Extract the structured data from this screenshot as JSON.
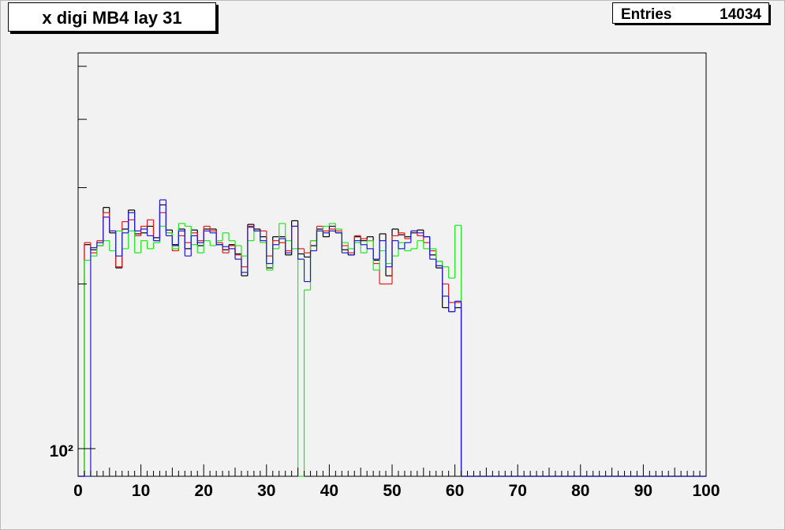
{
  "chart_data": {
    "type": "histogram",
    "title": "x digi MB4 lay 31",
    "stats": {
      "label": "Entries",
      "value": 14034
    },
    "log_y": true,
    "xlim": [
      0,
      100
    ],
    "ylim": [
      89,
      529
    ],
    "xticks": [
      0,
      10,
      20,
      30,
      40,
      50,
      60,
      70,
      80,
      90,
      100
    ],
    "yticks": [
      {
        "value": 100,
        "label": "10²"
      }
    ],
    "yminorticks": [
      200,
      300,
      400,
      500
    ],
    "bins": [
      0,
      1,
      2,
      3,
      4,
      5,
      6,
      7,
      8,
      9,
      10,
      11,
      12,
      13,
      14,
      15,
      16,
      17,
      18,
      19,
      20,
      21,
      22,
      23,
      24,
      25,
      26,
      27,
      28,
      29,
      30,
      31,
      32,
      33,
      34,
      35,
      36,
      37,
      38,
      39,
      40,
      41,
      42,
      43,
      44,
      45,
      46,
      47,
      48,
      49,
      50,
      51,
      52,
      53,
      54,
      55,
      56,
      57,
      58,
      59,
      60,
      61,
      62,
      63,
      64,
      65,
      66,
      67,
      68,
      69,
      70,
      71,
      72,
      73,
      74,
      75,
      76,
      77,
      78,
      79,
      80,
      81,
      82,
      83,
      84,
      85,
      86,
      87,
      88,
      89,
      90,
      91,
      92,
      93,
      94,
      95,
      96,
      97,
      98,
      99,
      100
    ],
    "series": [
      {
        "color": "#000000",
        "values": [
          0,
          236,
          231,
          235,
          276,
          248,
          214,
          252,
          273,
          247,
          248,
          255,
          243,
          279,
          251,
          236,
          252,
          232,
          251,
          235,
          252,
          252,
          236,
          231,
          236,
          227,
          207,
          257,
          252,
          244,
          214,
          244,
          244,
          226,
          261,
          227,
          224,
          235,
          252,
          244,
          255,
          248,
          231,
          226,
          244,
          240,
          244,
          221,
          247,
          207,
          252,
          246,
          244,
          248,
          251,
          244,
          226,
          214,
          181,
          178,
          181,
          0,
          0,
          0,
          0,
          0,
          0,
          0,
          0,
          0,
          0,
          0,
          0,
          0,
          0,
          0,
          0,
          0,
          0,
          0,
          0,
          0,
          0,
          0,
          0,
          0,
          0,
          0,
          0,
          0,
          0,
          0,
          0,
          0,
          0,
          0,
          0,
          0,
          0,
          0
        ]
      },
      {
        "color": "#e8191c",
        "values": [
          0,
          238,
          228,
          240,
          270,
          250,
          215,
          260,
          262,
          245,
          255,
          262,
          240,
          270,
          248,
          230,
          245,
          238,
          248,
          240,
          255,
          250,
          238,
          228,
          235,
          226,
          215,
          255,
          250,
          250,
          225,
          240,
          238,
          230,
          255,
          232,
          228,
          240,
          255,
          250,
          252,
          250,
          235,
          228,
          245,
          242,
          240,
          218,
          200,
          200,
          245,
          248,
          242,
          250,
          245,
          238,
          230,
          220,
          200,
          185,
          185,
          0,
          0,
          0,
          0,
          0,
          0,
          0,
          0,
          0,
          0,
          0,
          0,
          0,
          0,
          0,
          0,
          0,
          0,
          0,
          0,
          0,
          0,
          0,
          0,
          0,
          0,
          0,
          0,
          0,
          0,
          0,
          0,
          0,
          0,
          0,
          0,
          0,
          0,
          0
        ]
      },
      {
        "color": "#1ee81e",
        "values": [
          0,
          221,
          225,
          235,
          240,
          230,
          250,
          232,
          250,
          228,
          240,
          232,
          238,
          255,
          248,
          232,
          258,
          255,
          236,
          228,
          240,
          235,
          240,
          248,
          240,
          235,
          225,
          240,
          250,
          238,
          212,
          232,
          258,
          240,
          232,
          0,
          195,
          240,
          250,
          255,
          258,
          252,
          238,
          232,
          238,
          228,
          240,
          212,
          230,
          218,
          225,
          238,
          230,
          232,
          240,
          232,
          232,
          220,
          215,
          205,
          256,
          0,
          0,
          0,
          0,
          0,
          0,
          0,
          0,
          0,
          0,
          0,
          0,
          0,
          0,
          0,
          0,
          0,
          0,
          0,
          0,
          0,
          0,
          0,
          0,
          0,
          0,
          0,
          0,
          0,
          0,
          0,
          0,
          0,
          0,
          0,
          0,
          0,
          0,
          0
        ]
      },
      {
        "color": "#1c1cd6",
        "values": [
          0,
          0,
          233,
          238,
          265,
          250,
          225,
          248,
          270,
          250,
          252,
          245,
          240,
          285,
          245,
          235,
          250,
          225,
          245,
          238,
          250,
          248,
          236,
          234,
          232,
          222,
          210,
          254,
          250,
          240,
          218,
          236,
          242,
          228,
          255,
          222,
          202,
          230,
          250,
          248,
          250,
          248,
          228,
          226,
          240,
          236,
          232,
          222,
          240,
          215,
          240,
          232,
          238,
          250,
          248,
          244,
          222,
          216,
          190,
          178,
          186,
          0,
          0,
          0,
          0,
          0,
          0,
          0,
          0,
          0,
          0,
          0,
          0,
          0,
          0,
          0,
          0,
          0,
          0,
          0,
          0,
          0,
          0,
          0,
          0,
          0,
          0,
          0,
          0,
          0,
          0,
          0,
          0,
          0,
          0,
          0,
          0,
          0,
          0,
          0
        ]
      }
    ]
  }
}
